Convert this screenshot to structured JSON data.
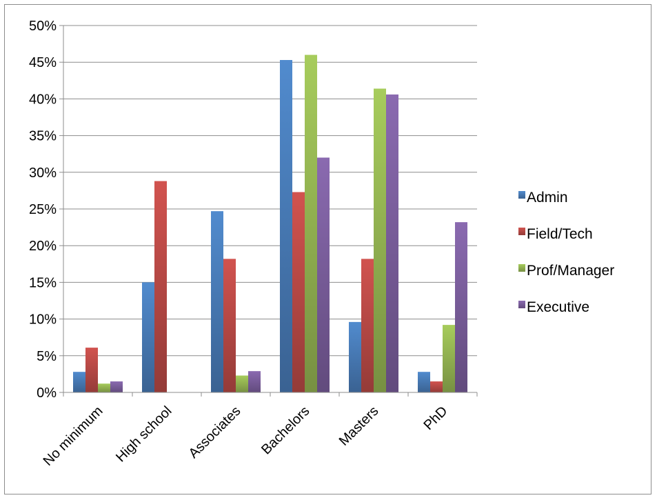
{
  "chart_data": {
    "type": "bar",
    "categories": [
      "No minimum",
      "High school",
      "Associates",
      "Bachelors",
      "Masters",
      "PhD"
    ],
    "series": [
      {
        "name": "Admin",
        "color": "#4a7ebb",
        "values": [
          2.8,
          15.0,
          24.7,
          45.3,
          9.6,
          2.8
        ]
      },
      {
        "name": "Field/Tech",
        "color": "#be4b48",
        "values": [
          6.1,
          28.8,
          18.2,
          27.3,
          18.2,
          1.5
        ]
      },
      {
        "name": "Prof/Manager",
        "color": "#98b954",
        "values": [
          1.2,
          0,
          2.3,
          46.0,
          41.4,
          9.2
        ]
      },
      {
        "name": "Executive",
        "color": "#7d60a0",
        "values": [
          1.5,
          0,
          2.9,
          32.0,
          40.6,
          23.2
        ]
      }
    ],
    "ylim": [
      0,
      50
    ],
    "ytick_step": 5,
    "ytick_suffix": "%",
    "grid": true,
    "legend_position": "right",
    "title": "",
    "xlabel": "",
    "ylabel": ""
  }
}
